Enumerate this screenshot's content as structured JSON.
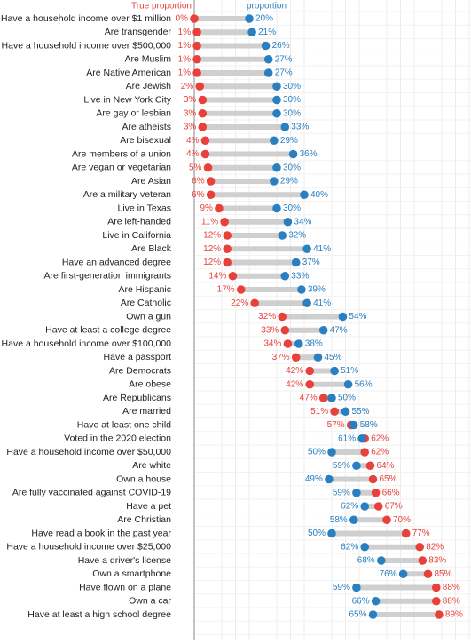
{
  "chart_data": {
    "type": "dumbbell",
    "categories": [
      "Have a household income over $1 million",
      "Are transgender",
      "Have a household income over $500,000",
      "Are Muslim",
      "Are Native American",
      "Are Jewish",
      "Live in New York City",
      "Are gay or lesbian",
      "Are atheists",
      "Are bisexual",
      "Are members of a union",
      "Are vegan or vegetarian",
      "Are Asian",
      "Are a military veteran",
      "Live in Texas",
      "Are left-handed",
      "Live in California",
      "Are Black",
      "Have an advanced degree",
      "Are first-generation immigrants",
      "Are Hispanic",
      "Are Catholic",
      "Own a gun",
      "Have at least a college degree",
      "Have a household income over $100,000",
      "Have a passport",
      "Are Democrats",
      "Are obese",
      "Are Republicans",
      "Are married",
      "Have at least one child",
      "Voted in the 2020 election",
      "Have a household income over $50,000",
      "Are white",
      "Own a house",
      "Are fully vaccinated against COVID-19",
      "Have a pet",
      "Are Christian",
      "Have read a book in the past year",
      "Have a household income over $25,000",
      "Have a driver's license",
      "Own a smartphone",
      "Have flown on a plane",
      "Own a car",
      "Have at least a high school degree"
    ],
    "series": [
      {
        "name": "True proportion",
        "color": "#e8413c",
        "values": [
          0,
          1,
          1,
          1,
          1,
          2,
          3,
          3,
          3,
          4,
          4,
          5,
          6,
          6,
          9,
          11,
          12,
          12,
          12,
          14,
          17,
          22,
          32,
          33,
          34,
          37,
          42,
          42,
          47,
          51,
          57,
          62,
          62,
          64,
          65,
          66,
          67,
          70,
          77,
          82,
          83,
          85,
          88,
          88,
          89
        ],
        "value_labels": [
          "0%",
          "1%",
          "1%",
          "1%",
          "1%",
          "2%",
          "3%",
          "3%",
          "3%",
          "4%",
          "4%",
          "5%",
          "6%",
          "6%",
          "9%",
          "11%",
          "12%",
          "12%",
          "12%",
          "14%",
          "17%",
          "22%",
          "32%",
          "33%",
          "34%",
          "37%",
          "42%",
          "42%",
          "47%",
          "51%",
          "57%",
          "62%",
          "62%",
          "64%",
          "65%",
          "66%",
          "67%",
          "70%",
          "77%",
          "82%",
          "83%",
          "85%",
          "88%",
          "88%",
          "89%"
        ]
      },
      {
        "name": "proportion",
        "color": "#2a7fc1",
        "values": [
          20,
          21,
          26,
          27,
          27,
          30,
          30,
          30,
          33,
          29,
          36,
          30,
          29,
          40,
          30,
          34,
          32,
          41,
          37,
          33,
          39,
          41,
          54,
          47,
          38,
          45,
          51,
          56,
          50,
          55,
          58,
          61,
          50,
          59,
          49,
          59,
          62,
          58,
          50,
          62,
          68,
          76,
          59,
          66,
          65
        ],
        "value_labels": [
          "20%",
          "21%",
          "26%",
          "27%",
          "27%",
          "30%",
          "30%",
          "30%",
          "33%",
          "29%",
          "36%",
          "30%",
          "29%",
          "40%",
          "30%",
          "34%",
          "32%",
          "41%",
          "37%",
          "33%",
          "39%",
          "41%",
          "54%",
          "47%",
          "38%",
          "45%",
          "51%",
          "56%",
          "50%",
          "55%",
          "58%",
          "61%",
          "50%",
          "59%",
          "49%",
          "59%",
          "62%",
          "58%",
          "50%",
          "62%",
          "68%",
          "76%",
          "59%",
          "66%",
          "65%"
        ]
      }
    ]
  }
}
